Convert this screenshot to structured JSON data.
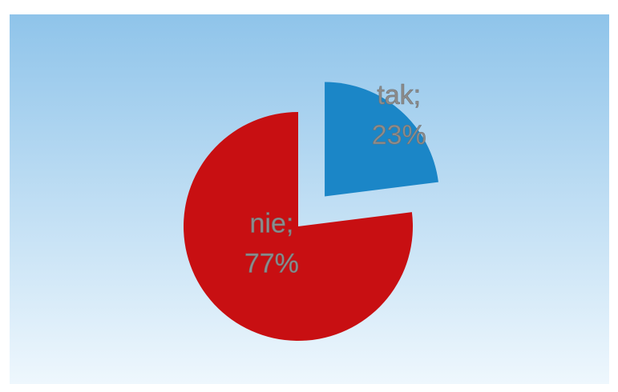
{
  "chart_data": {
    "type": "pie",
    "title": "",
    "slices": [
      {
        "label": "tak",
        "value": 23,
        "percent_text": "23%",
        "color": "#1b86c7",
        "exploded": true
      },
      {
        "label": "nie",
        "value": 77,
        "percent_text": "77%",
        "color": "#c80f12",
        "exploded": false
      }
    ],
    "legend": "none",
    "background": {
      "top": "#8fc4ea",
      "bottom": "#eef7fd"
    }
  }
}
